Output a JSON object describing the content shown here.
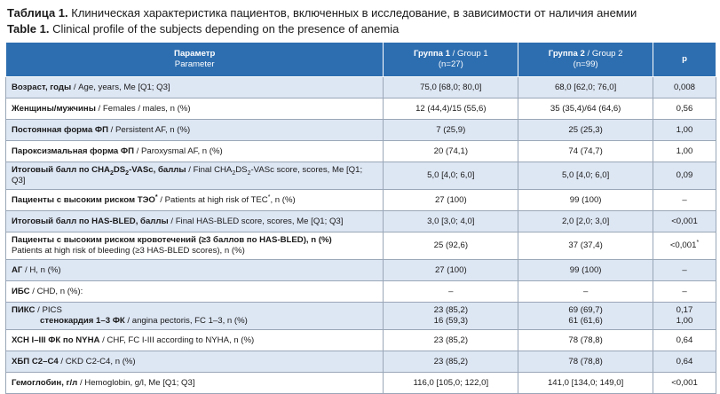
{
  "caption": {
    "ru_label": "Таблица 1.",
    "ru_text": " Клиническая характеристика пациентов, включенных в исследование, в зависимости от наличия анемии",
    "en_label": "Table 1.",
    "en_text": " Clinical profile of the subjects depending on the presence of anemia"
  },
  "header": {
    "param_ru": "Параметр",
    "param_en": "Parameter",
    "g1_ru": "Группа 1",
    "g1_en": " / Group 1",
    "g1_n": "(n=27)",
    "g2_ru": "Группа 2",
    "g2_en": " / Group 2",
    "g2_n": "(n=99)",
    "p": "p"
  },
  "rows": {
    "age": {
      "ru": "Возраст, годы",
      "en": " / Age, years, Me [Q1; Q3]",
      "g1": "75,0 [68,0; 80,0]",
      "g2": "68,0 [62,0; 76,0]",
      "p": "0,008"
    },
    "sex": {
      "ru": "Женщины/мужчины",
      "en": " / Females / males, n (%)",
      "g1": "12 (44,4)/15 (55,6)",
      "g2": "35 (35,4)/64 (64,6)",
      "p": "0,56"
    },
    "persistent": {
      "ru": "Постоянная форма ФП",
      "en": " / Persistent AF, n (%)",
      "g1": "7 (25,9)",
      "g2": "25 (25,3)",
      "p": "1,00"
    },
    "paroxysmal": {
      "ru": "Пароксизмальная форма ФП",
      "en": " / Paroxysmal AF, n (%)",
      "g1": "20 (74,1)",
      "g2": "74 (74,7)",
      "p": "1,00"
    },
    "chads": {
      "ru_a": "Итоговый балл по CHA",
      "ru_b": "DS",
      "ru_c": "-VASc, баллы",
      "en_a": " / Final CHA",
      "en_b": "DS",
      "en_c": "-VASc score, scores, Me [Q1; Q3]",
      "sub": "2",
      "g1": "5,0 [4,0; 6,0]",
      "g2": "5,0 [4,0; 6,0]",
      "p": "0,09"
    },
    "tec": {
      "ru": "Пациенты с высоким риском ТЭО",
      "sup": "*",
      "en_a": " / Patients at high risk of TEC",
      "en_b": ", n (%)",
      "g1": "27 (100)",
      "g2": "99 (100)",
      "p": "–"
    },
    "hasbled": {
      "ru": "Итоговый балл по HAS-BLED, баллы",
      "en": " / Final HAS-BLED score, scores, Me [Q1; Q3]",
      "g1": "3,0 [3,0; 4,0]",
      "g2": "2,0 [2,0; 3,0]",
      "p": "<0,001"
    },
    "bleeding": {
      "ru": "Пациенты с высоким риском кровотечений (≥3 баллов по HAS-BLED), n (%)",
      "en": "Patients at high risk of bleeding (≥3 HAS-BLED scores), n (%)",
      "g1": "25 (92,6)",
      "g2": "37 (37,4)",
      "p": "<0,001",
      "p_sup": "*"
    },
    "ag": {
      "ru": "АГ",
      "en": " / H, n (%)",
      "g1": "27 (100)",
      "g2": "99 (100)",
      "p": "–"
    },
    "ibs": {
      "ru": "ИБС",
      "en": " / CHD, n (%):",
      "g1": "–",
      "g2": "–",
      "p": "–"
    },
    "piks": {
      "ru": "ПИКС",
      "en": " / PICS",
      "g1": "23 (85,2)",
      "g2": "69 (69,7)",
      "p": "0,17"
    },
    "angina": {
      "ru": "стенокардия 1–3 ФК",
      "en": " / angina pectoris, FC 1–3, n (%)",
      "g1": "16 (59,3)",
      "g2": "61 (61,6)",
      "p": "1,00"
    },
    "chf": {
      "ru": "ХСН I–III ФК по NYHA",
      "en": " / CHF, FC I-III according to NYHA, n (%)",
      "g1": "23 (85,2)",
      "g2": "78 (78,8)",
      "p": "0,64"
    },
    "ckd": {
      "ru": "ХБП С2–С4",
      "en": " / CKD C2-C4, n (%)",
      "g1": "23 (85,2)",
      "g2": "78 (78,8)",
      "p": "0,64"
    },
    "hb": {
      "ru": "Гемоглобин, г/л",
      "en": " / Hemoglobin, g/l, Me [Q1; Q3]",
      "g1": "116,0 [105,0; 122,0]",
      "g2": "141,0 [134,0; 149,0]",
      "p": "<0,001"
    }
  }
}
